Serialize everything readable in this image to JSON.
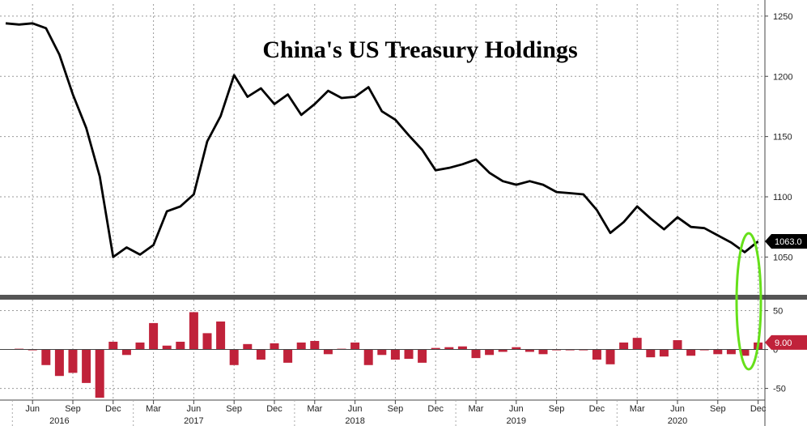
{
  "chart_data": [
    {
      "type": "line",
      "title": "China's US Treasury Holdings",
      "xlabel": "",
      "ylabel": "",
      "ylim": [
        1020,
        1260
      ],
      "yticks": [
        "1250",
        "1200",
        "1150",
        "1100",
        "1050"
      ],
      "last_value_label": "1063.0",
      "grid": true,
      "series": [
        {
          "values": [
            1244,
            1243,
            1244,
            1240,
            1218,
            1185,
            1157,
            1117,
            1050,
            1058,
            1052,
            1060,
            1088,
            1092,
            1102,
            1146,
            1167,
            1201,
            1183,
            1190,
            1177,
            1185,
            1168,
            1177,
            1188,
            1182,
            1183,
            1191,
            1171,
            1164,
            1151,
            1139,
            1122,
            1124,
            1127,
            1131,
            1120,
            1113,
            1110,
            1113,
            1110,
            1104,
            1103,
            1102,
            1089,
            1070,
            1079,
            1092,
            1082,
            1073,
            1083,
            1075,
            1074,
            1068,
            1062,
            1054,
            1063
          ]
        }
      ]
    },
    {
      "type": "bar",
      "title": "",
      "ylim": [
        -65,
        62
      ],
      "yticks": [
        "50",
        "0",
        "-50"
      ],
      "last_value_label": "9.00",
      "series": [
        {
          "values": [
            0,
            1,
            -1,
            -20,
            -34,
            -30,
            -43,
            -62,
            10,
            -7,
            9,
            34,
            5,
            10,
            48,
            21,
            36,
            -20,
            7,
            -13,
            8,
            -17,
            9,
            11,
            -6,
            1,
            9,
            -20,
            -7,
            -13,
            -12,
            -17,
            2,
            3,
            4,
            -11,
            -7,
            -3,
            3,
            -3,
            -6,
            -1,
            -1,
            -1,
            -13,
            -19,
            9,
            15,
            -10,
            -9,
            12,
            -8,
            -1,
            -6,
            -6,
            -8,
            9
          ]
        }
      ]
    }
  ],
  "x_axis": {
    "months": [
      {
        "label": "Jun",
        "index": 2
      },
      {
        "label": "Sep",
        "index": 5
      },
      {
        "label": "Dec",
        "index": 8
      },
      {
        "label": "Mar",
        "index": 11
      },
      {
        "label": "Jun",
        "index": 14
      },
      {
        "label": "Sep",
        "index": 17
      },
      {
        "label": "Dec",
        "index": 20
      },
      {
        "label": "Mar",
        "index": 23
      },
      {
        "label": "Jun",
        "index": 26
      },
      {
        "label": "Sep",
        "index": 29
      },
      {
        "label": "Dec",
        "index": 32
      },
      {
        "label": "Mar",
        "index": 35
      },
      {
        "label": "Jun",
        "index": 38
      },
      {
        "label": "Sep",
        "index": 41
      },
      {
        "label": "Dec",
        "index": 44
      },
      {
        "label": "Mar",
        "index": 47
      },
      {
        "label": "Jun",
        "index": 50
      },
      {
        "label": "Sep",
        "index": 53
      },
      {
        "label": "Dec",
        "index": 56
      }
    ],
    "years": [
      {
        "label": "2016",
        "index": 4
      },
      {
        "label": "2017",
        "index": 14
      },
      {
        "label": "2018",
        "index": 26
      },
      {
        "label": "2019",
        "index": 38
      },
      {
        "label": "2020",
        "index": 50
      }
    ]
  },
  "colors": {
    "line": "#000000",
    "bar": "#c0223a",
    "highlight": "#66e01a",
    "grid": "#9a9a9a"
  }
}
